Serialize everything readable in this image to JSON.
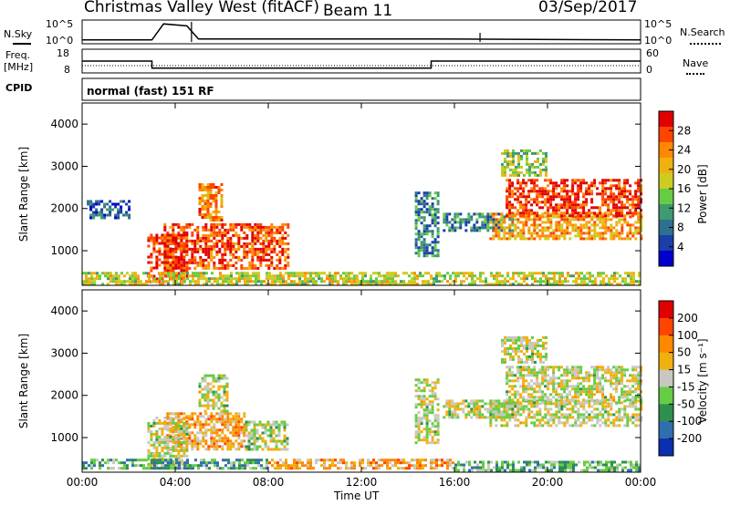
{
  "header": {
    "station": "Christmas Valley West (fitACF)",
    "beam": "Beam 11",
    "date": "03/Sep/2017"
  },
  "strip_labels": {
    "nsky": "N.Sky",
    "nsky_ticks": [
      "10^5",
      "10^0"
    ],
    "nsearch": "N.Search",
    "nsearch_ticks": [
      "10^5",
      "10^0"
    ],
    "freq": "Freq.",
    "freq_unit": "[MHz]",
    "freq_ticks": [
      "18",
      "8"
    ],
    "nave": "Nave",
    "nave_ticks": [
      "60",
      "0"
    ],
    "cpid": "CPID",
    "cpid_value": "normal (fast) 151 RF"
  },
  "chart_data": [
    {
      "type": "line",
      "name": "noise",
      "x": [
        0,
        3,
        3.5,
        4.5,
        5,
        15,
        24
      ],
      "y": [
        0.1,
        0.1,
        0.9,
        0.8,
        0.15,
        0.15,
        0.1
      ]
    },
    {
      "type": "line",
      "name": "frequency",
      "x": [
        0,
        3,
        3,
        15,
        15,
        24
      ],
      "y": [
        13,
        13,
        10,
        10,
        13,
        13
      ]
    },
    {
      "type": "heatmap",
      "name": "power",
      "ylabel": "Slant Range [km]",
      "yticks": [
        "4000",
        "3000",
        "2000",
        "1000"
      ],
      "ylim": [
        180,
        4500
      ],
      "colorbar_label": "Power [dB]",
      "colorbar_ticks": [
        "28",
        "24",
        "20",
        "16",
        "12",
        "8",
        "4"
      ],
      "colors": [
        "#0000cc",
        "#1a3fa8",
        "#2f6f8f",
        "#3f9a6f",
        "#66cc44",
        "#cccc22",
        "#f0b010",
        "#ff8800",
        "#ff4400",
        "#e00000"
      ],
      "regions": [
        {
          "t": [
            3.5,
            8.8
          ],
          "r": [
            600,
            1650
          ],
          "level": 0.85
        },
        {
          "t": [
            5.0,
            6.0
          ],
          "r": [
            1700,
            2600
          ],
          "level": 0.75
        },
        {
          "t": [
            2.8,
            4.5
          ],
          "r": [
            250,
            1400
          ],
          "level": 0.9
        },
        {
          "t": [
            0,
            24
          ],
          "r": [
            200,
            500
          ],
          "level": 0.55
        },
        {
          "t": [
            14.3,
            15.3
          ],
          "r": [
            900,
            2400
          ],
          "level": 0.3
        },
        {
          "t": [
            15.5,
            18.5
          ],
          "r": [
            1500,
            1900
          ],
          "level": 0.3
        },
        {
          "t": [
            17.5,
            24
          ],
          "r": [
            1300,
            1900
          ],
          "level": 0.7
        },
        {
          "t": [
            18.2,
            24
          ],
          "r": [
            1850,
            2700
          ],
          "level": 0.9
        },
        {
          "t": [
            18.0,
            20.0
          ],
          "r": [
            2800,
            3400
          ],
          "level": 0.5
        },
        {
          "t": [
            0.2,
            2.0
          ],
          "r": [
            1800,
            2200
          ],
          "level": 0.2
        }
      ]
    },
    {
      "type": "heatmap",
      "name": "velocity",
      "xlabel": "Time UT",
      "xticks": [
        "00:00",
        "04:00",
        "08:00",
        "12:00",
        "16:00",
        "20:00",
        "00:00"
      ],
      "xlim": [
        0,
        24
      ],
      "ylabel": "Slant Range [km]",
      "yticks": [
        "4000",
        "3000",
        "2000",
        "1000"
      ],
      "ylim": [
        180,
        4500
      ],
      "colorbar_label": "Velocity [m s⁻¹]",
      "colorbar_ticks": [
        "200",
        "100",
        "50",
        "15",
        "-15",
        "-50",
        "-100",
        "-200"
      ],
      "colors": [
        "#0a2fb0",
        "#2f6fb0",
        "#2f8f4f",
        "#66cc44",
        "#c8c8c0",
        "#f0b010",
        "#ff8800",
        "#ff4400",
        "#e00000"
      ],
      "regions": [
        {
          "t": [
            3.5,
            7.0
          ],
          "r": [
            700,
            1600
          ],
          "level": 0.65
        },
        {
          "t": [
            7.0,
            8.8
          ],
          "r": [
            700,
            1400
          ],
          "level": 0.45
        },
        {
          "t": [
            2.8,
            4.5
          ],
          "r": [
            300,
            1500
          ],
          "level": 0.5
        },
        {
          "t": [
            5.0,
            6.2
          ],
          "r": [
            1600,
            2500
          ],
          "level": 0.5
        },
        {
          "t": [
            0,
            8
          ],
          "r": [
            250,
            500
          ],
          "level": 0.3
        },
        {
          "t": [
            8,
            16
          ],
          "r": [
            250,
            500
          ],
          "level": 0.65
        },
        {
          "t": [
            16,
            24
          ],
          "r": [
            250,
            450
          ],
          "level": 0.35
        },
        {
          "t": [
            14.3,
            15.3
          ],
          "r": [
            900,
            2400
          ],
          "level": 0.5
        },
        {
          "t": [
            15.5,
            18.5
          ],
          "r": [
            1500,
            1900
          ],
          "level": 0.5
        },
        {
          "t": [
            17.5,
            24
          ],
          "r": [
            1300,
            1900
          ],
          "level": 0.5
        },
        {
          "t": [
            18.2,
            24
          ],
          "r": [
            1850,
            2700
          ],
          "level": 0.5
        },
        {
          "t": [
            18.0,
            20.0
          ],
          "r": [
            2800,
            3400
          ],
          "level": 0.5
        }
      ]
    }
  ]
}
